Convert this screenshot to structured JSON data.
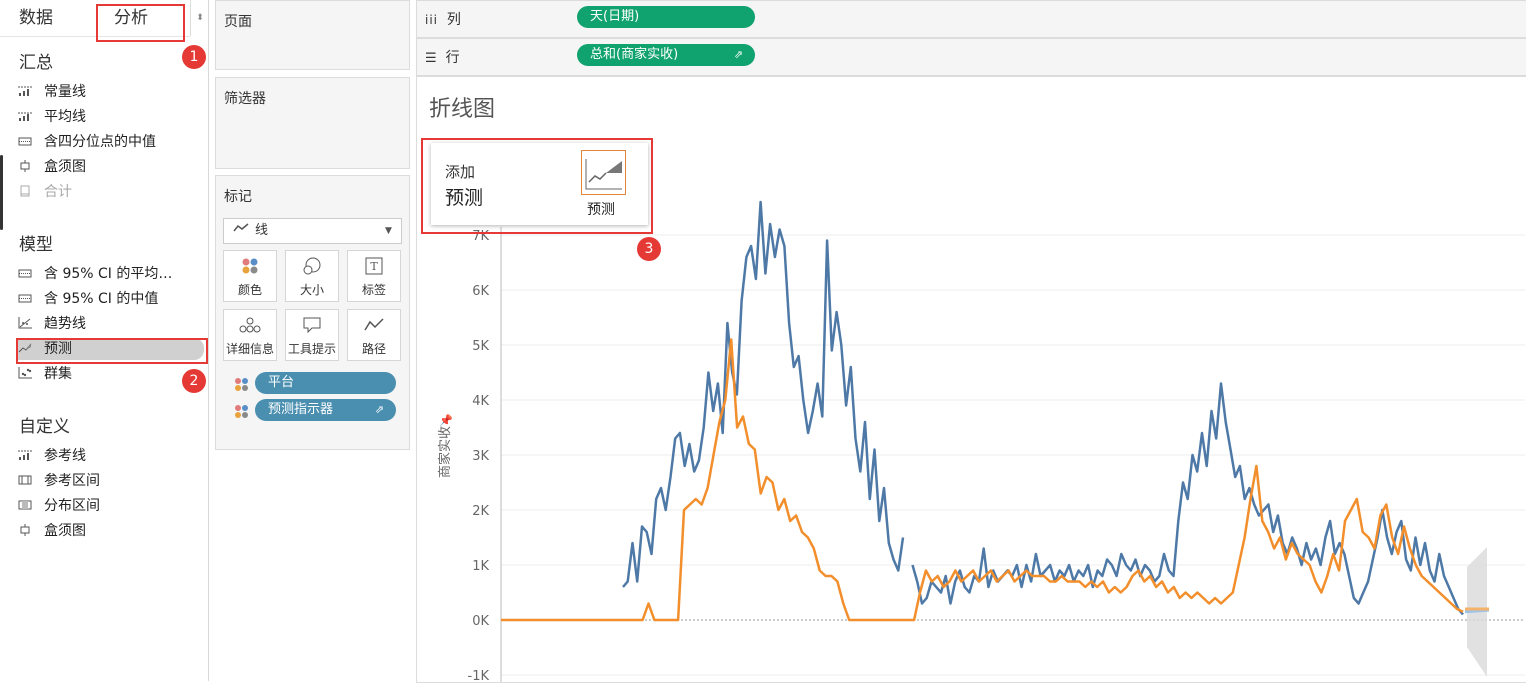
{
  "left_pane": {
    "tabs": [
      "数据",
      "分析"
    ],
    "sections": [
      {
        "title": "汇总",
        "items": [
          {
            "label": "常量线",
            "icon": "constant-line-icon"
          },
          {
            "label": "平均线",
            "icon": "average-line-icon"
          },
          {
            "label": "含四分位点的中值",
            "icon": "median-quartiles-icon"
          },
          {
            "label": "盒须图",
            "icon": "box-plot-icon"
          },
          {
            "label": "合计",
            "icon": "totals-icon",
            "disabled": true
          }
        ]
      },
      {
        "title": "模型",
        "items": [
          {
            "label": "含 95% CI 的平均…",
            "icon": "average-ci-icon"
          },
          {
            "label": "含 95% CI 的中值",
            "icon": "median-ci-icon"
          },
          {
            "label": "趋势线",
            "icon": "trend-line-icon"
          },
          {
            "label": "预测",
            "icon": "forecast-icon",
            "selected": true
          },
          {
            "label": "群集",
            "icon": "cluster-icon"
          }
        ]
      },
      {
        "title": "自定义",
        "items": [
          {
            "label": "参考线",
            "icon": "reference-line-icon"
          },
          {
            "label": "参考区间",
            "icon": "reference-band-icon"
          },
          {
            "label": "分布区间",
            "icon": "distribution-band-icon"
          },
          {
            "label": "盒须图",
            "icon": "box-plot-icon"
          }
        ]
      }
    ],
    "badges": [
      "1",
      "2",
      "3"
    ]
  },
  "cards": {
    "pages": "页面",
    "filters": "筛选器",
    "marks": "标记",
    "mark_type": "线",
    "mark_buttons": [
      "颜色",
      "大小",
      "标签",
      "详细信息",
      "工具提示",
      "路径"
    ],
    "mark_pills": [
      "平台",
      "预测指示器"
    ]
  },
  "shelves": {
    "columns_label": "列",
    "columns_pill": "天(日期)",
    "rows_label": "行",
    "rows_pill": "总和(商家实收)"
  },
  "drop_hint": {
    "line1": "添加",
    "line2": "预测",
    "icon_label": "预测"
  },
  "colors": {
    "blue_series": "#4e79a7",
    "orange_series": "#f28e2b",
    "accent_green": "#10a26f",
    "pill_blue": "#4a8fb0",
    "highlight_red": "#e53935"
  },
  "chart_data": {
    "type": "line",
    "title": "折线图",
    "ylabel": "商家实收",
    "ylim": [
      -1000,
      8000
    ],
    "y_ticks": [
      "-1K",
      "0K",
      "1K",
      "2K",
      "3K",
      "4K",
      "5K",
      "6K",
      "7K"
    ],
    "series": [
      {
        "name": "",
        "color": "#4e79a7",
        "values": [
          600,
          700,
          1400,
          700,
          1700,
          1600,
          1200,
          2200,
          2400,
          2000,
          2600,
          3300,
          3400,
          2800,
          3200,
          2700,
          2900,
          3500,
          4500,
          3800,
          4300,
          3400,
          5400,
          4500,
          4100,
          5800,
          6600,
          6800,
          6200,
          7600,
          6300,
          7200,
          6600,
          7100,
          6800,
          5400,
          4600,
          4800,
          4000,
          3400,
          3800,
          4300,
          3700,
          6900,
          4900,
          5600,
          5000,
          3900,
          4600,
          3300,
          2700,
          3600,
          2200,
          3100,
          1800,
          2400,
          1400,
          1100,
          900,
          1500,
          null,
          1000,
          700,
          300,
          400,
          700,
          600,
          500,
          800,
          300,
          700,
          900,
          600,
          500,
          800,
          700,
          1300,
          600,
          900,
          700,
          800,
          900,
          800,
          1000,
          600,
          1000,
          700,
          1200,
          800,
          900,
          1000,
          700,
          900,
          800,
          1000,
          700,
          900,
          800,
          1000,
          600,
          900,
          800,
          1100,
          1000,
          800,
          1200,
          1000,
          900,
          1100,
          800,
          1000,
          900,
          700,
          800,
          1200,
          900,
          800,
          1800,
          2500,
          2200,
          3000,
          2700,
          3400,
          2800,
          3800,
          3300,
          4300,
          3600,
          3100,
          2600,
          2800,
          2200,
          2400,
          2100,
          1900,
          2000,
          2100,
          1600,
          1900,
          1400,
          1200,
          1500,
          1300,
          1000,
          1400,
          1100,
          1300,
          1000,
          1500,
          1800,
          1200,
          1400,
          1200,
          800,
          400,
          300,
          500,
          700,
          1100,
          1500,
          2000,
          1500,
          1200,
          1600,
          1800,
          1100,
          900,
          1500,
          1000,
          1400,
          900,
          700,
          1200,
          800,
          600,
          400,
          200,
          100
        ]
      },
      {
        "name": "",
        "color": "#f28e2b",
        "values": [
          0,
          0,
          0,
          0,
          0,
          0,
          0,
          0,
          0,
          0,
          0,
          0,
          0,
          0,
          0,
          0,
          0,
          0,
          0,
          0,
          0,
          0,
          0,
          0,
          0,
          300,
          0,
          0,
          0,
          0,
          0,
          2000,
          2100,
          2200,
          2100,
          2400,
          3000,
          3600,
          4000,
          5100,
          3500,
          3700,
          3200,
          3100,
          2300,
          2600,
          2500,
          2000,
          2200,
          1800,
          1900,
          1600,
          1500,
          1300,
          900,
          800,
          800,
          700,
          300,
          0,
          0,
          0,
          0,
          0,
          0,
          0,
          0,
          0,
          0,
          0,
          0,
          500,
          900,
          700,
          800,
          600,
          700,
          900,
          700,
          800,
          900,
          700,
          800,
          900,
          700,
          800,
          900,
          700,
          800,
          900,
          800,
          800,
          800,
          700,
          700,
          800,
          700,
          700,
          700,
          600,
          700,
          600,
          700,
          500,
          600,
          500,
          600,
          800,
          900,
          700,
          800,
          600,
          700,
          500,
          600,
          400,
          500,
          400,
          500,
          400,
          300,
          400,
          300,
          400,
          500,
          1000,
          1500,
          2200,
          2800,
          1800,
          1600,
          1300,
          1500,
          1100,
          1400,
          1200,
          1100,
          1000,
          700,
          500,
          800,
          1200,
          900,
          1800,
          2000,
          2200,
          1600,
          1500,
          1300,
          1900,
          2100,
          1500,
          1200,
          1700,
          1300,
          1000,
          800,
          700,
          600,
          500,
          400,
          300,
          200,
          150
        ]
      },
      {
        "name": "",
        "color": "#aaaaaa",
        "values": [
          150,
          180,
          200
        ]
      }
    ]
  }
}
